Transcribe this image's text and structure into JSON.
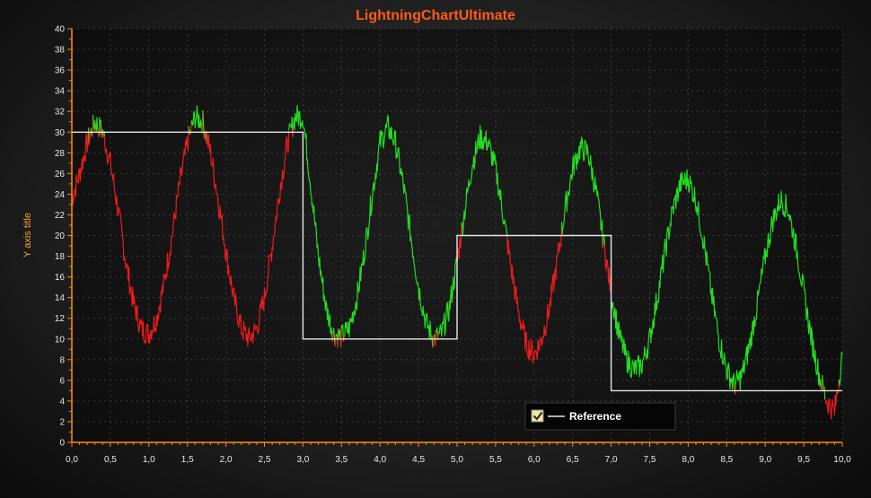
{
  "chart_data": {
    "type": "line",
    "title": "LightningChartUltimate",
    "xlabel": "",
    "ylabel": "Y axis title",
    "xlim": [
      0,
      10
    ],
    "ylim": [
      0,
      40
    ],
    "x_ticks": [
      "0,0",
      "0,5",
      "1,0",
      "1,5",
      "2,0",
      "2,5",
      "3,0",
      "3,5",
      "4,0",
      "4,5",
      "5,0",
      "5,5",
      "6,0",
      "6,5",
      "7,0",
      "7,5",
      "8,0",
      "8,5",
      "9,0",
      "9,5",
      "10,0"
    ],
    "y_ticks": [
      "0",
      "2",
      "4",
      "6",
      "8",
      "10",
      "12",
      "14",
      "16",
      "18",
      "20",
      "22",
      "24",
      "26",
      "28",
      "30",
      "32",
      "34",
      "36",
      "38",
      "40"
    ],
    "grid": true,
    "legend_position": "bottom-right",
    "colors": {
      "above_reference": "#22dd22",
      "below_reference": "#ee1b1b",
      "reference": "#e6e6e6",
      "title": "#ff5a1a",
      "axis": "#ff8c00",
      "ylabel": "#ffa020"
    },
    "series": [
      {
        "name": "",
        "style": "noisy sine, green where above Reference, red where below",
        "x": [
          0.0,
          0.1,
          0.2,
          0.3,
          0.4,
          0.5,
          0.6,
          0.7,
          0.8,
          0.9,
          1.0,
          1.1,
          1.2,
          1.3,
          1.4,
          1.5,
          1.6,
          1.7,
          1.8,
          1.9,
          2.0,
          2.1,
          2.2,
          2.3,
          2.4,
          2.5,
          2.6,
          2.7,
          2.8,
          2.9,
          3.0,
          3.1,
          3.2,
          3.3,
          3.4,
          3.5,
          3.6,
          3.7,
          3.8,
          3.9,
          4.0,
          4.1,
          4.2,
          4.3,
          4.4,
          4.5,
          4.6,
          4.7,
          4.8,
          4.9,
          5.0,
          5.1,
          5.2,
          5.3,
          5.4,
          5.5,
          5.6,
          5.7,
          5.8,
          5.9,
          6.0,
          6.1,
          6.2,
          6.3,
          6.4,
          6.5,
          6.6,
          6.7,
          6.8,
          6.9,
          7.0,
          7.1,
          7.2,
          7.3,
          7.4,
          7.5,
          7.6,
          7.7,
          7.8,
          7.9,
          8.0,
          8.1,
          8.2,
          8.3,
          8.4,
          8.5,
          8.6,
          8.7,
          8.8,
          8.9,
          9.0,
          9.1,
          9.2,
          9.3,
          9.4,
          9.5,
          9.6,
          9.7,
          9.8,
          9.9,
          10.0
        ],
        "y": [
          23.5,
          26.0,
          29.0,
          31.0,
          30.0,
          27.0,
          22.5,
          17.5,
          13.5,
          11.0,
          10.5,
          12.0,
          15.5,
          20.0,
          25.0,
          29.0,
          31.5,
          31.0,
          28.0,
          23.5,
          18.5,
          14.0,
          11.0,
          10.0,
          11.0,
          14.0,
          19.0,
          24.5,
          29.0,
          31.5,
          31.5,
          25.0,
          18.0,
          13.0,
          10.5,
          10.2,
          11.0,
          14.0,
          18.5,
          24.0,
          29.0,
          30.5,
          29.0,
          25.0,
          20.0,
          15.0,
          11.5,
          10.0,
          10.5,
          13.0,
          17.5,
          22.5,
          27.0,
          29.5,
          29.0,
          26.5,
          22.0,
          17.0,
          12.5,
          9.5,
          8.5,
          10.0,
          13.0,
          17.5,
          22.5,
          26.5,
          28.5,
          28.0,
          24.5,
          19.5,
          14.5,
          10.5,
          8.0,
          7.0,
          7.5,
          10.0,
          14.0,
          18.5,
          22.5,
          25.0,
          25.5,
          23.5,
          19.5,
          14.5,
          10.0,
          7.0,
          5.5,
          6.5,
          9.5,
          13.5,
          18.0,
          21.5,
          23.5,
          22.5,
          19.0,
          14.5,
          10.0,
          6.5,
          4.0,
          3.0,
          8.5
        ]
      },
      {
        "name": "Reference",
        "style": "step",
        "x": [
          0.0,
          3.0,
          3.0,
          5.0,
          5.0,
          7.0,
          7.0,
          10.0
        ],
        "y": [
          30,
          30,
          10,
          10,
          20,
          20,
          5,
          5
        ]
      }
    ]
  }
}
